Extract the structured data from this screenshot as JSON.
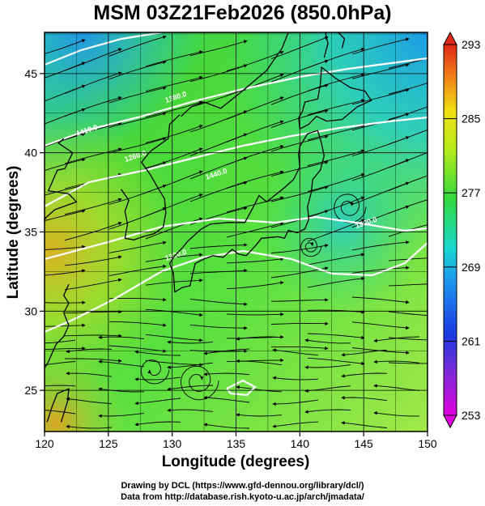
{
  "title": "MSM 03Z21Feb2026 (850.0hPa)",
  "map": {
    "x_axis_label": "Longitude (degrees)",
    "y_axis_label": "Latitude  (degrees)",
    "lon_range": [
      120,
      150
    ],
    "lat_range": [
      22.4,
      47.6
    ],
    "lon_ticks": [
      "120",
      "125",
      "130",
      "135",
      "140",
      "145",
      "150"
    ],
    "lat_ticks": [
      "25",
      "30",
      "35",
      "40",
      "45"
    ],
    "field": "temperature shading with streamlines",
    "contour_labels": [
      "1380.0",
      "1440.0",
      "1500.0",
      "1320.0",
      "1260.0",
      "1410.0"
    ]
  },
  "colorbar": {
    "ticks": [
      "293",
      "285",
      "277",
      "269",
      "261",
      "253"
    ],
    "range": [
      253,
      293
    ]
  },
  "credits": {
    "line1": "Drawing by DCL (https://www.gfd-dennou.org/library/dcl/)",
    "line2": "Data from http://database.rish.kyoto-u.ac.jp/arch/jmadata/"
  },
  "colors": {
    "background": "#ffffff",
    "contour": "#ffffff",
    "streamline": "#000000",
    "coast": "#000000"
  }
}
